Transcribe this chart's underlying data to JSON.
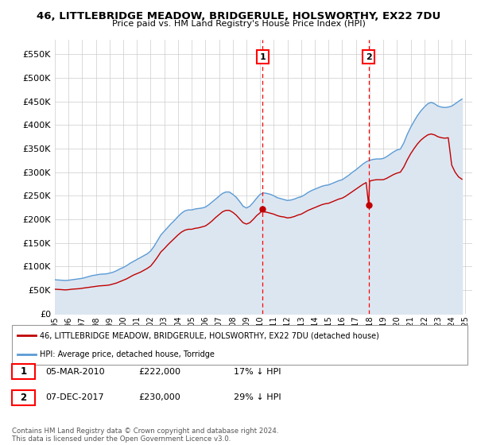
{
  "title": "46, LITTLEBRIDGE MEADOW, BRIDGERULE, HOLSWORTHY, EX22 7DU",
  "subtitle": "Price paid vs. HM Land Registry's House Price Index (HPI)",
  "legend_label_red": "46, LITTLEBRIDGE MEADOW, BRIDGERULE, HOLSWORTHY, EX22 7DU (detached house)",
  "legend_label_blue": "HPI: Average price, detached house, Torridge",
  "sale1_date": "05-MAR-2010",
  "sale1_price": 222000,
  "sale1_pct": "17% ↓ HPI",
  "sale2_date": "07-DEC-2017",
  "sale2_price": 230000,
  "sale2_pct": "29% ↓ HPI",
  "sale1_year": 2010.18,
  "sale2_year": 2017.93,
  "hpi_color": "#5b9bd5",
  "hpi_fill_color": "#dce6f1",
  "price_color": "#c00000",
  "vline_color": "#ff0000",
  "background_color": "#ffffff",
  "plot_bg_color": "#ffffff",
  "ylim": [
    0,
    580000
  ],
  "xlim_start": 1995.0,
  "xlim_end": 2025.5,
  "copyright_text": "Contains HM Land Registry data © Crown copyright and database right 2024.\nThis data is licensed under the Open Government Licence v3.0.",
  "hpi_data": [
    [
      1995.0,
      72000
    ],
    [
      1995.25,
      71500
    ],
    [
      1995.5,
      71000
    ],
    [
      1995.75,
      70500
    ],
    [
      1996.0,
      71000
    ],
    [
      1996.25,
      72000
    ],
    [
      1996.5,
      73000
    ],
    [
      1996.75,
      74000
    ],
    [
      1997.0,
      75000
    ],
    [
      1997.25,
      77000
    ],
    [
      1997.5,
      79000
    ],
    [
      1997.75,
      81000
    ],
    [
      1998.0,
      82000
    ],
    [
      1998.25,
      83500
    ],
    [
      1998.5,
      84000
    ],
    [
      1998.75,
      84500
    ],
    [
      1999.0,
      86000
    ],
    [
      1999.25,
      88000
    ],
    [
      1999.5,
      91000
    ],
    [
      1999.75,
      95000
    ],
    [
      2000.0,
      98000
    ],
    [
      2000.25,
      102000
    ],
    [
      2000.5,
      107000
    ],
    [
      2000.75,
      111000
    ],
    [
      2001.0,
      115000
    ],
    [
      2001.25,
      119000
    ],
    [
      2001.5,
      123000
    ],
    [
      2001.75,
      127000
    ],
    [
      2002.0,
      133000
    ],
    [
      2002.25,
      143000
    ],
    [
      2002.5,
      155000
    ],
    [
      2002.75,
      167000
    ],
    [
      2003.0,
      175000
    ],
    [
      2003.25,
      183000
    ],
    [
      2003.5,
      191000
    ],
    [
      2003.75,
      198000
    ],
    [
      2004.0,
      206000
    ],
    [
      2004.25,
      213000
    ],
    [
      2004.5,
      218000
    ],
    [
      2004.75,
      220000
    ],
    [
      2005.0,
      220000
    ],
    [
      2005.25,
      222000
    ],
    [
      2005.5,
      223000
    ],
    [
      2005.75,
      224000
    ],
    [
      2006.0,
      226000
    ],
    [
      2006.25,
      231000
    ],
    [
      2006.5,
      237000
    ],
    [
      2006.75,
      243000
    ],
    [
      2007.0,
      249000
    ],
    [
      2007.25,
      255000
    ],
    [
      2007.5,
      258000
    ],
    [
      2007.75,
      258000
    ],
    [
      2008.0,
      253000
    ],
    [
      2008.25,
      247000
    ],
    [
      2008.5,
      238000
    ],
    [
      2008.75,
      228000
    ],
    [
      2009.0,
      224000
    ],
    [
      2009.25,
      228000
    ],
    [
      2009.5,
      236000
    ],
    [
      2009.75,
      245000
    ],
    [
      2010.0,
      253000
    ],
    [
      2010.25,
      256000
    ],
    [
      2010.5,
      255000
    ],
    [
      2010.75,
      253000
    ],
    [
      2011.0,
      250000
    ],
    [
      2011.25,
      246000
    ],
    [
      2011.5,
      244000
    ],
    [
      2011.75,
      242000
    ],
    [
      2012.0,
      240000
    ],
    [
      2012.25,
      241000
    ],
    [
      2012.5,
      243000
    ],
    [
      2012.75,
      246000
    ],
    [
      2013.0,
      248000
    ],
    [
      2013.25,
      252000
    ],
    [
      2013.5,
      257000
    ],
    [
      2013.75,
      261000
    ],
    [
      2014.0,
      264000
    ],
    [
      2014.25,
      267000
    ],
    [
      2014.5,
      270000
    ],
    [
      2014.75,
      272000
    ],
    [
      2015.0,
      273000
    ],
    [
      2015.25,
      276000
    ],
    [
      2015.5,
      279000
    ],
    [
      2015.75,
      282000
    ],
    [
      2016.0,
      284000
    ],
    [
      2016.25,
      289000
    ],
    [
      2016.5,
      294000
    ],
    [
      2016.75,
      300000
    ],
    [
      2017.0,
      305000
    ],
    [
      2017.25,
      311000
    ],
    [
      2017.5,
      317000
    ],
    [
      2017.75,
      322000
    ],
    [
      2018.0,
      325000
    ],
    [
      2018.25,
      327000
    ],
    [
      2018.5,
      328000
    ],
    [
      2018.75,
      328000
    ],
    [
      2019.0,
      329000
    ],
    [
      2019.25,
      333000
    ],
    [
      2019.5,
      338000
    ],
    [
      2019.75,
      343000
    ],
    [
      2020.0,
      347000
    ],
    [
      2020.25,
      349000
    ],
    [
      2020.5,
      362000
    ],
    [
      2020.75,
      380000
    ],
    [
      2021.0,
      395000
    ],
    [
      2021.25,
      408000
    ],
    [
      2021.5,
      420000
    ],
    [
      2021.75,
      430000
    ],
    [
      2022.0,
      438000
    ],
    [
      2022.25,
      445000
    ],
    [
      2022.5,
      448000
    ],
    [
      2022.75,
      445000
    ],
    [
      2023.0,
      440000
    ],
    [
      2023.25,
      438000
    ],
    [
      2023.5,
      437000
    ],
    [
      2023.75,
      438000
    ],
    [
      2024.0,
      440000
    ],
    [
      2024.25,
      445000
    ],
    [
      2024.5,
      450000
    ],
    [
      2024.75,
      455000
    ]
  ],
  "price_data": [
    [
      1995.0,
      52000
    ],
    [
      1995.25,
      51500
    ],
    [
      1995.5,
      51000
    ],
    [
      1995.75,
      50500
    ],
    [
      1996.0,
      51000
    ],
    [
      1996.25,
      52000
    ],
    [
      1996.5,
      52500
    ],
    [
      1996.75,
      53000
    ],
    [
      1997.0,
      54000
    ],
    [
      1997.25,
      55000
    ],
    [
      1997.5,
      56000
    ],
    [
      1997.75,
      57000
    ],
    [
      1998.0,
      58000
    ],
    [
      1998.25,
      59000
    ],
    [
      1998.5,
      59500
    ],
    [
      1998.75,
      60000
    ],
    [
      1999.0,
      61000
    ],
    [
      1999.25,
      63000
    ],
    [
      1999.5,
      65000
    ],
    [
      1999.75,
      68000
    ],
    [
      2000.0,
      71000
    ],
    [
      2000.25,
      74000
    ],
    [
      2000.5,
      78000
    ],
    [
      2000.75,
      82000
    ],
    [
      2001.0,
      85000
    ],
    [
      2001.25,
      88000
    ],
    [
      2001.5,
      92000
    ],
    [
      2001.75,
      96000
    ],
    [
      2002.0,
      101000
    ],
    [
      2002.25,
      110000
    ],
    [
      2002.5,
      120000
    ],
    [
      2002.75,
      131000
    ],
    [
      2003.0,
      138000
    ],
    [
      2003.25,
      146000
    ],
    [
      2003.5,
      153000
    ],
    [
      2003.75,
      160000
    ],
    [
      2004.0,
      167000
    ],
    [
      2004.25,
      173000
    ],
    [
      2004.5,
      177000
    ],
    [
      2004.75,
      179000
    ],
    [
      2005.0,
      179000
    ],
    [
      2005.25,
      181000
    ],
    [
      2005.5,
      182000
    ],
    [
      2005.75,
      184000
    ],
    [
      2006.0,
      186000
    ],
    [
      2006.25,
      191000
    ],
    [
      2006.5,
      197000
    ],
    [
      2006.75,
      204000
    ],
    [
      2007.0,
      210000
    ],
    [
      2007.25,
      216000
    ],
    [
      2007.5,
      219000
    ],
    [
      2007.75,
      219000
    ],
    [
      2008.0,
      215000
    ],
    [
      2008.25,
      209000
    ],
    [
      2008.5,
      201000
    ],
    [
      2008.75,
      193000
    ],
    [
      2009.0,
      190000
    ],
    [
      2009.25,
      193000
    ],
    [
      2009.5,
      200000
    ],
    [
      2009.75,
      208000
    ],
    [
      2010.0,
      214000
    ],
    [
      2010.18,
      222000
    ],
    [
      2010.25,
      216000
    ],
    [
      2010.5,
      215000
    ],
    [
      2010.75,
      213000
    ],
    [
      2011.0,
      211000
    ],
    [
      2011.25,
      208000
    ],
    [
      2011.5,
      206000
    ],
    [
      2011.75,
      205000
    ],
    [
      2012.0,
      203000
    ],
    [
      2012.25,
      204000
    ],
    [
      2012.5,
      206000
    ],
    [
      2012.75,
      209000
    ],
    [
      2013.0,
      211000
    ],
    [
      2013.25,
      215000
    ],
    [
      2013.5,
      219000
    ],
    [
      2013.75,
      222000
    ],
    [
      2014.0,
      225000
    ],
    [
      2014.25,
      228000
    ],
    [
      2014.5,
      231000
    ],
    [
      2014.75,
      233000
    ],
    [
      2015.0,
      234000
    ],
    [
      2015.25,
      237000
    ],
    [
      2015.5,
      240000
    ],
    [
      2015.75,
      243000
    ],
    [
      2016.0,
      245000
    ],
    [
      2016.25,
      249000
    ],
    [
      2016.5,
      254000
    ],
    [
      2016.75,
      259000
    ],
    [
      2017.0,
      264000
    ],
    [
      2017.25,
      269000
    ],
    [
      2017.5,
      274000
    ],
    [
      2017.75,
      278000
    ],
    [
      2017.93,
      230000
    ],
    [
      2018.0,
      281000
    ],
    [
      2018.25,
      283000
    ],
    [
      2018.5,
      284000
    ],
    [
      2018.75,
      284000
    ],
    [
      2019.0,
      284000
    ],
    [
      2019.25,
      287000
    ],
    [
      2019.5,
      291000
    ],
    [
      2019.75,
      295000
    ],
    [
      2020.0,
      298000
    ],
    [
      2020.25,
      300000
    ],
    [
      2020.5,
      311000
    ],
    [
      2020.75,
      326000
    ],
    [
      2021.0,
      339000
    ],
    [
      2021.25,
      350000
    ],
    [
      2021.5,
      360000
    ],
    [
      2021.75,
      368000
    ],
    [
      2022.0,
      374000
    ],
    [
      2022.25,
      379000
    ],
    [
      2022.5,
      381000
    ],
    [
      2022.75,
      379000
    ],
    [
      2023.0,
      375000
    ],
    [
      2023.25,
      373000
    ],
    [
      2023.5,
      372000
    ],
    [
      2023.75,
      373000
    ],
    [
      2024.0,
      315000
    ],
    [
      2024.25,
      300000
    ],
    [
      2024.5,
      290000
    ],
    [
      2024.75,
      285000
    ]
  ]
}
